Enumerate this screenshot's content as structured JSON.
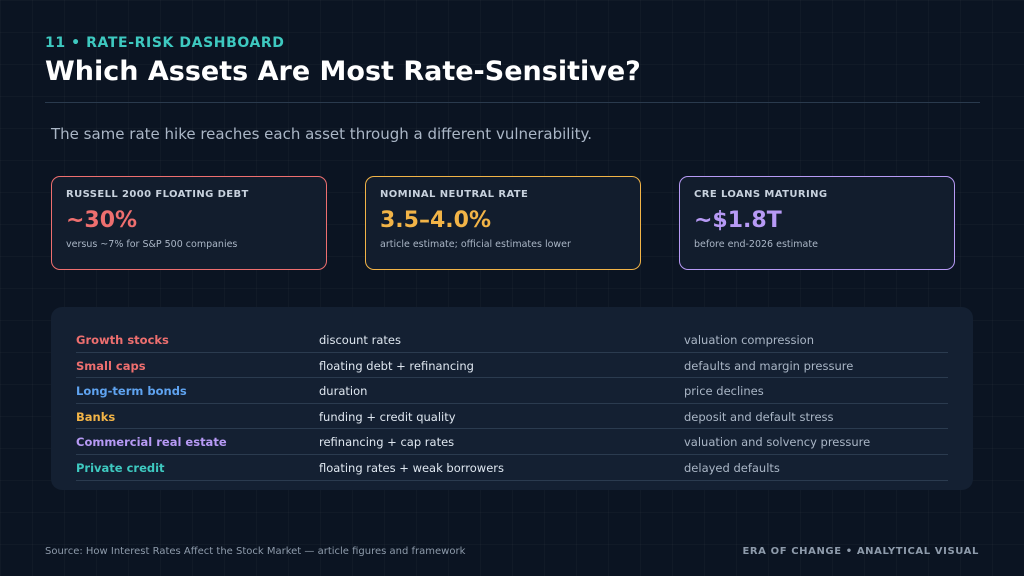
{
  "header": {
    "kicker": "11  •  RATE-RISK DASHBOARD",
    "title": "Which Assets Are Most Rate-Sensitive?",
    "subtitle": "The same rate hike reaches each asset through a different vulnerability."
  },
  "cards": [
    {
      "label": "RUSSELL 2000 FLOATING DEBT",
      "value": "~30%",
      "note": "versus ~7% for S&P 500 companies",
      "color": "#ee6f6f"
    },
    {
      "label": "NOMINAL NEUTRAL RATE",
      "value": "3.5–4.0%",
      "note": "article estimate; official estimates lower",
      "color": "#f2b447"
    },
    {
      "label": "CRE LOANS MATURING",
      "value": "~$1.8T",
      "note": "before end-2026 estimate",
      "color": "#b79af5"
    }
  ],
  "table": {
    "rows": [
      {
        "asset": "Growth stocks",
        "channel": "discount rates",
        "effect": "valuation compression",
        "color": "#ee6f6f"
      },
      {
        "asset": "Small caps",
        "channel": "floating debt + refinancing",
        "effect": "defaults and margin pressure",
        "color": "#ee6f6f"
      },
      {
        "asset": "Long-term bonds",
        "channel": "duration",
        "effect": "price declines",
        "color": "#5fa3f0"
      },
      {
        "asset": "Banks",
        "channel": "funding + credit quality",
        "effect": "deposit and default stress",
        "color": "#f2b447"
      },
      {
        "asset": "Commercial real estate",
        "channel": "refinancing + cap rates",
        "effect": "valuation and solvency pressure",
        "color": "#b79af5"
      },
      {
        "asset": "Private credit",
        "channel": "floating rates + weak borrowers",
        "effect": "delayed defaults",
        "color": "#3ec9c0"
      }
    ]
  },
  "footer": {
    "source": "Source: How Interest Rates Affect the Stock Market — article figures and framework",
    "brand": "ERA OF CHANGE  •  ANALYTICAL VISUAL"
  }
}
